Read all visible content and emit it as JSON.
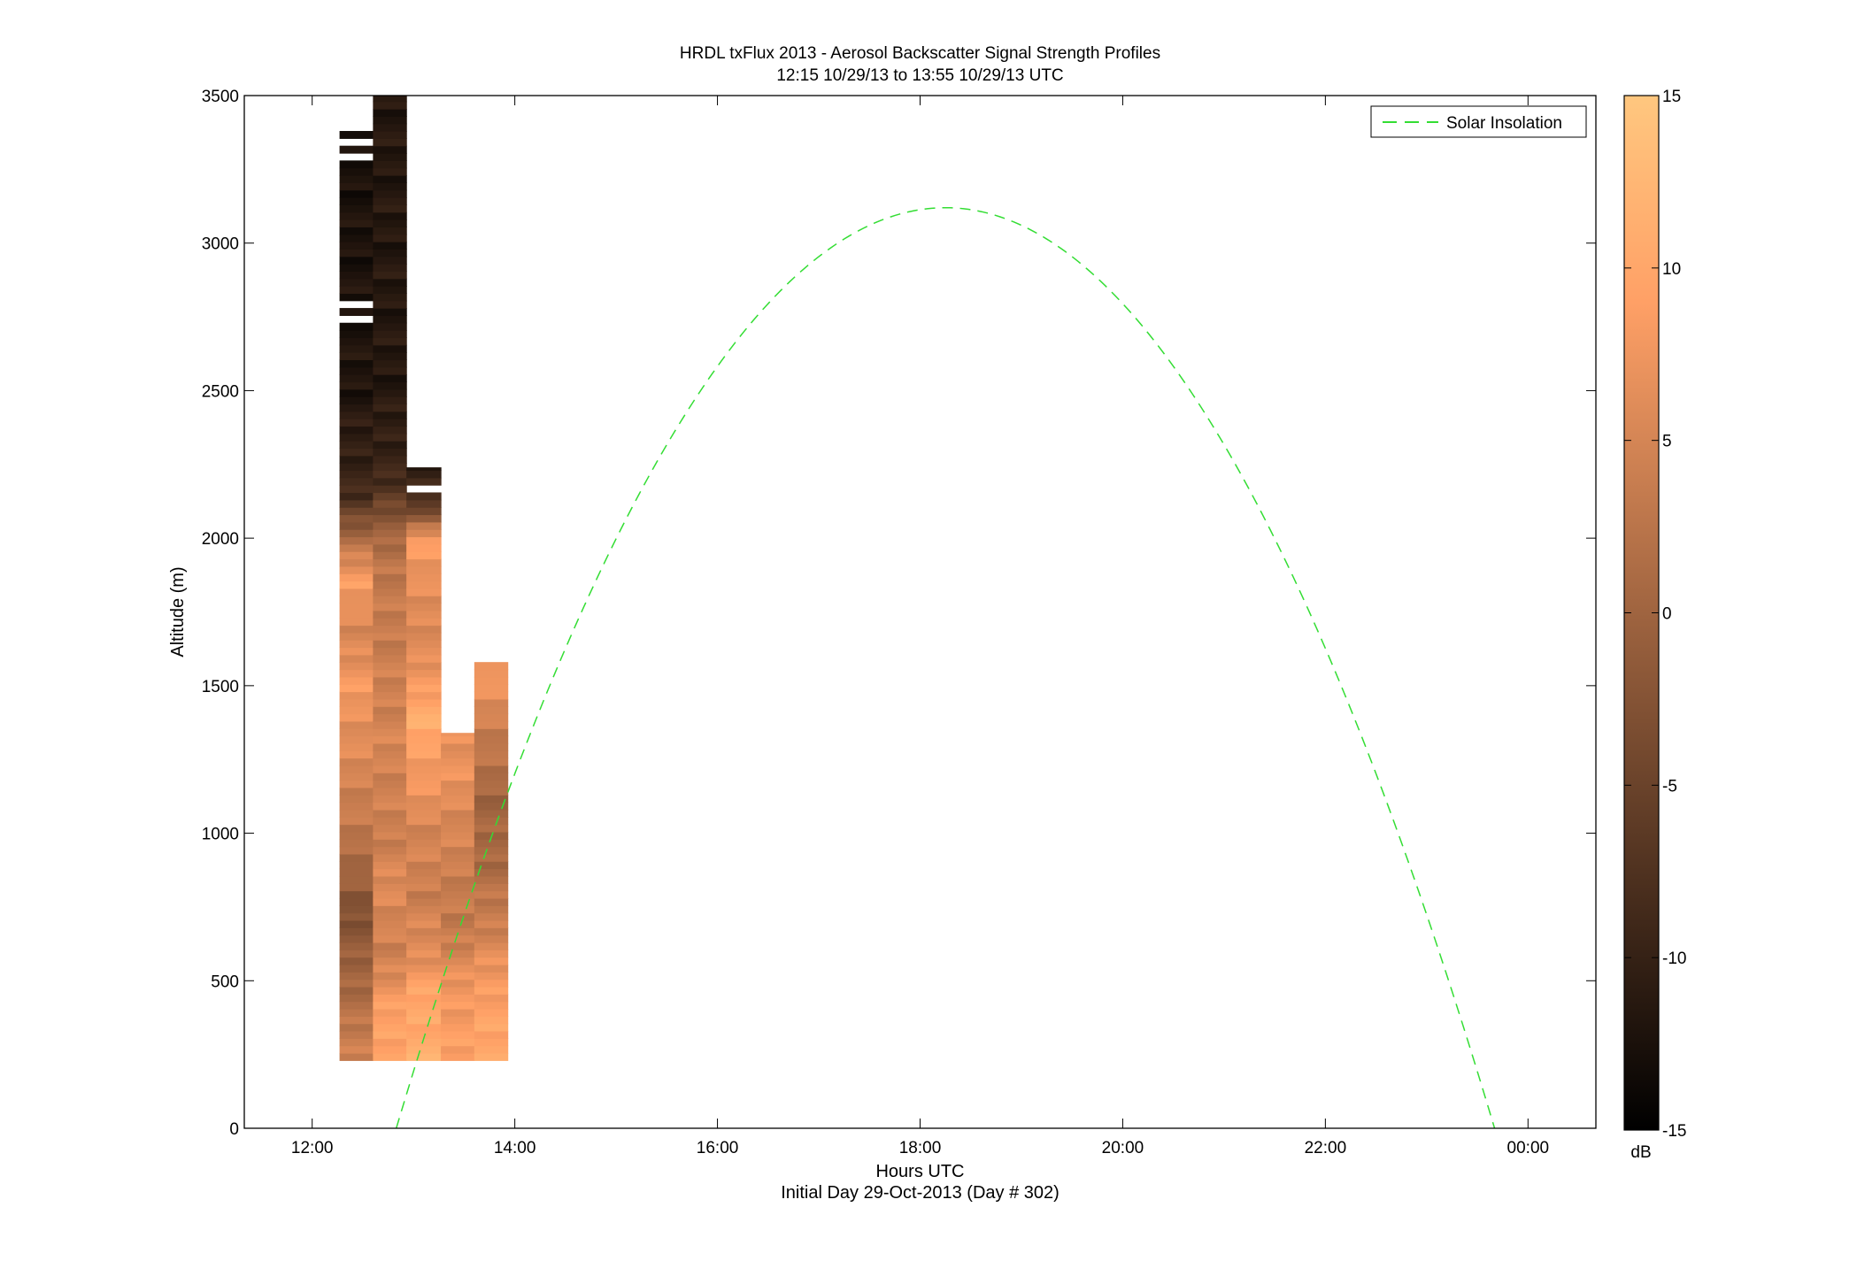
{
  "chart_data": {
    "type": "heatmap",
    "title": "HRDL txFlux 2013 - Aerosol Backscatter Signal Strength Profiles",
    "subtitle": "12:15 10/29/13 to 13:55 10/29/13  UTC",
    "xlabel": "Hours UTC",
    "xlabel2": "Initial Day 29-Oct-2013 (Day # 302)",
    "ylabel": "Altitude (m)",
    "xlim": [
      11.33,
      24.67
    ],
    "ylim": [
      0,
      3500
    ],
    "xticks": [
      12,
      14,
      16,
      18,
      20,
      22,
      24
    ],
    "xtick_labels": [
      "12:00",
      "14:00",
      "16:00",
      "18:00",
      "20:00",
      "22:00",
      "00:00"
    ],
    "yticks": [
      0,
      500,
      1000,
      1500,
      2000,
      2500,
      3000,
      3500
    ],
    "ytick_labels": [
      "0",
      "500",
      "1000",
      "1500",
      "2000",
      "2500",
      "3000",
      "3500"
    ],
    "colorbar": {
      "label": "dB",
      "clim": [
        -15,
        15
      ],
      "ticks": [
        -15,
        -10,
        -5,
        0,
        5,
        10,
        15
      ],
      "tick_labels": [
        "-15",
        "-10",
        "-5",
        "0",
        "5",
        "10",
        "15"
      ],
      "colormap": "copper"
    },
    "profiles": [
      {
        "time_start": 12.27,
        "time_end": 12.6,
        "alt_bottom": 230,
        "alt_top": 3380,
        "gaps": [
          [
            2730,
            2755
          ],
          [
            2780,
            2805
          ],
          [
            3270,
            3295
          ],
          [
            3320,
            3345
          ]
        ],
        "levels": [
          [
            230,
            5
          ],
          [
            400,
            2
          ],
          [
            600,
            -1
          ],
          [
            750,
            -3
          ],
          [
            900,
            1
          ],
          [
            1100,
            4
          ],
          [
            1300,
            6
          ],
          [
            1500,
            8
          ],
          [
            1700,
            5
          ],
          [
            1850,
            9
          ],
          [
            1950,
            4
          ],
          [
            2050,
            -2
          ],
          [
            2150,
            -9
          ],
          [
            2500,
            -12
          ],
          [
            3380,
            -12.5
          ]
        ]
      },
      {
        "time_start": 12.6,
        "time_end": 12.93,
        "alt_bottom": 230,
        "alt_top": 3500,
        "gaps": [],
        "levels": [
          [
            230,
            10
          ],
          [
            400,
            9
          ],
          [
            600,
            4
          ],
          [
            800,
            6
          ],
          [
            1000,
            4
          ],
          [
            1300,
            5
          ],
          [
            1600,
            4
          ],
          [
            1900,
            3
          ],
          [
            2050,
            -1
          ],
          [
            2200,
            -9
          ],
          [
            2500,
            -11.5
          ],
          [
            3500,
            -11.5
          ]
        ]
      },
      {
        "time_start": 12.93,
        "time_end": 13.27,
        "alt_bottom": 230,
        "alt_top": 2240,
        "gaps": [
          [
            2160,
            2185
          ]
        ],
        "levels": [
          [
            230,
            11
          ],
          [
            450,
            10
          ],
          [
            600,
            6
          ],
          [
            800,
            4
          ],
          [
            1000,
            5
          ],
          [
            1200,
            8
          ],
          [
            1400,
            11
          ],
          [
            1600,
            6
          ],
          [
            1800,
            6
          ],
          [
            2000,
            9
          ],
          [
            2080,
            -4
          ],
          [
            2240,
            -11
          ]
        ]
      },
      {
        "time_start": 13.27,
        "time_end": 13.6,
        "alt_bottom": 230,
        "alt_top": 1340,
        "gaps": [],
        "levels": [
          [
            230,
            9
          ],
          [
            450,
            8
          ],
          [
            700,
            3
          ],
          [
            1000,
            5
          ],
          [
            1200,
            7
          ],
          [
            1340,
            7
          ]
        ]
      },
      {
        "time_start": 13.6,
        "time_end": 13.93,
        "alt_bottom": 230,
        "alt_top": 1580,
        "gaps": [],
        "levels": [
          [
            230,
            10
          ],
          [
            450,
            9
          ],
          [
            700,
            4
          ],
          [
            900,
            1
          ],
          [
            1100,
            0
          ],
          [
            1300,
            3
          ],
          [
            1450,
            6
          ],
          [
            1580,
            9
          ]
        ]
      }
    ],
    "series": [
      {
        "name": "Solar Insolation",
        "style": "dashed",
        "color": "#33dd33",
        "peak_time": 18.25,
        "peak_altitude": 3120,
        "start_time": 12.83,
        "end_time": 23.67
      }
    ],
    "legend_position": "top-right",
    "grid": false
  }
}
